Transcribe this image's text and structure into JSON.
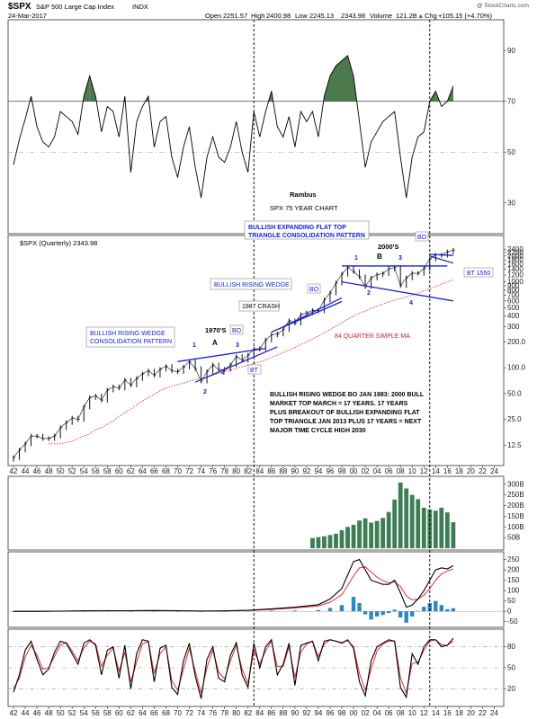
{
  "header": {
    "symbol": "$SPX",
    "name": "S&P 500 Large Cap Index",
    "exchange": "INDX",
    "watermark": "@ StockCharts.com",
    "date": "24-Mar-2017",
    "quote": {
      "open_label": "Open",
      "open": "2251.57",
      "high_label": "High",
      "high": "2400.98",
      "low_label": "Low",
      "low": "2245.13",
      "close": "2343.98",
      "volume_label": "Volume",
      "volume": "121.2B",
      "chg_label": "Chg",
      "chg": "+105.15 (+4.70%)",
      "chg_arrow": "▲"
    }
  },
  "colors": {
    "rsi_fill": "#4d7a4d",
    "price_bar": "#111111",
    "ma_line": "#e03030",
    "trendline": "#1a22cc",
    "volume_bar": "#3e7e57",
    "macd_hist": "#2f86c4",
    "macd_line": "#000000",
    "signal_line": "#e03030",
    "annotation_blue": "#1a22cc",
    "annotation_red": "#d02020"
  },
  "chart_data": [
    {
      "type": "line",
      "name": "rsi",
      "ylim": [
        20,
        100
      ],
      "ticks": [
        "90",
        "70",
        "50",
        "30"
      ],
      "levels": [
        70,
        50
      ],
      "fill_above": 70,
      "x": [
        1942,
        1943,
        1944,
        1945,
        1946,
        1947,
        1948,
        1949,
        1950,
        1951,
        1952,
        1953,
        1954,
        1955,
        1956,
        1957,
        1958,
        1959,
        1960,
        1961,
        1962,
        1963,
        1964,
        1965,
        1966,
        1967,
        1968,
        1969,
        1970,
        1971,
        1972,
        1973,
        1974,
        1975,
        1976,
        1977,
        1978,
        1979,
        1980,
        1981,
        1982,
        1983,
        1984,
        1985,
        1986,
        1987,
        1988,
        1989,
        1990,
        1991,
        1992,
        1993,
        1994,
        1995,
        1996,
        1997,
        1998,
        1999,
        2000,
        2001,
        2002,
        2003,
        2004,
        2005,
        2006,
        2007,
        2008,
        2009,
        2010,
        2011,
        2012,
        2013,
        2014,
        2015,
        2016,
        2017
      ],
      "values": [
        45,
        55,
        63,
        72,
        60,
        54,
        52,
        56,
        66,
        64,
        62,
        57,
        72,
        80,
        72,
        58,
        68,
        66,
        56,
        72,
        42,
        62,
        68,
        72,
        52,
        62,
        64,
        48,
        40,
        52,
        60,
        44,
        32,
        48,
        56,
        48,
        46,
        52,
        62,
        50,
        42,
        66,
        56,
        66,
        74,
        60,
        56,
        64,
        52,
        66,
        62,
        66,
        56,
        72,
        80,
        84,
        86,
        88,
        80,
        62,
        44,
        54,
        58,
        62,
        64,
        66,
        48,
        32,
        48,
        56,
        58,
        70,
        74,
        68,
        70,
        76
      ]
    },
    {
      "type": "line",
      "name": "$SPX (Quarterly) 2343.98",
      "legend": "$SPX (Quarterly) 2343.98",
      "log_scale": true,
      "ylim": [
        8,
        3000
      ],
      "ticks": [
        "2400",
        "2200",
        "2000",
        "1800",
        "1600",
        "1400",
        "1200",
        "1000",
        "900",
        "800",
        "700",
        "600",
        "500",
        "400",
        "300",
        "200.0",
        "100.0",
        "50.0",
        "25.0",
        "12.5"
      ],
      "x": [
        1942,
        1943,
        1944,
        1945,
        1946,
        1947,
        1948,
        1949,
        1950,
        1951,
        1952,
        1953,
        1954,
        1955,
        1956,
        1957,
        1958,
        1959,
        1960,
        1961,
        1962,
        1963,
        1964,
        1965,
        1966,
        1967,
        1968,
        1969,
        1970,
        1971,
        1972,
        1973,
        1974,
        1975,
        1976,
        1977,
        1978,
        1979,
        1980,
        1981,
        1982,
        1983,
        1984,
        1985,
        1986,
        1987,
        1988,
        1989,
        1990,
        1991,
        1992,
        1993,
        1994,
        1995,
        1996,
        1997,
        1998,
        1999,
        2000,
        2001,
        2002,
        2003,
        2004,
        2005,
        2006,
        2007,
        2008,
        2009,
        2010,
        2011,
        2012,
        2013,
        2014,
        2015,
        2016,
        2017
      ],
      "values": [
        9,
        11,
        13,
        16,
        16,
        15,
        15,
        16,
        20,
        23,
        26,
        25,
        35,
        45,
        47,
        42,
        55,
        60,
        58,
        72,
        63,
        75,
        85,
        92,
        82,
        96,
        104,
        92,
        90,
        102,
        118,
        98,
        70,
        90,
        108,
        95,
        96,
        108,
        135,
        122,
        140,
        165,
        167,
        210,
        242,
        247,
        278,
        353,
        330,
        417,
        436,
        466,
        459,
        616,
        741,
        970,
        1229,
        1469,
        1320,
        1148,
        880,
        1112,
        1212,
        1248,
        1418,
        1468,
        903,
        1115,
        1258,
        1258,
        1426,
        1848,
        2059,
        2044,
        2239,
        2344
      ],
      "ma_name": "84 QUARTER SIMPLE MA",
      "ma_values": [
        null,
        null,
        null,
        null,
        null,
        null,
        13,
        13,
        13,
        13.5,
        14,
        15,
        16,
        17,
        19,
        20,
        22,
        24,
        27,
        30,
        33,
        37,
        41,
        45,
        49,
        54,
        58,
        61,
        64,
        66,
        70,
        73,
        75,
        78,
        82,
        86,
        90,
        94,
        98,
        103,
        107,
        112,
        117,
        124,
        132,
        140,
        150,
        160,
        172,
        186,
        200,
        216,
        234,
        254,
        278,
        304,
        334,
        366,
        400,
        430,
        458,
        490,
        520,
        552,
        584,
        612,
        640,
        668,
        700,
        740,
        780,
        830,
        880,
        940,
        1000,
        1060
      ]
    },
    {
      "type": "bar",
      "name": "volume",
      "ylim": [
        0,
        320
      ],
      "ticks": [
        "300B",
        "250B",
        "200B",
        "150B",
        "100B",
        "50B"
      ],
      "x": [
        1993,
        1994,
        1995,
        1996,
        1997,
        1998,
        1999,
        2000,
        2001,
        2002,
        2003,
        2004,
        2005,
        2006,
        2007,
        2008,
        2009,
        2010,
        2011,
        2012,
        2013,
        2014,
        2015,
        2016,
        2017
      ],
      "values": [
        48,
        52,
        56,
        62,
        68,
        84,
        100,
        110,
        130,
        140,
        120,
        128,
        142,
        170,
        228,
        308,
        280,
        250,
        230,
        190,
        182,
        176,
        190,
        168,
        122
      ]
    },
    {
      "type": "line",
      "name": "macd",
      "ylim": [
        -60,
        270
      ],
      "ticks": [
        "250",
        "200",
        "150",
        "100",
        "50",
        "0",
        "-50"
      ],
      "x": [
        1942,
        1946,
        1950,
        1954,
        1958,
        1962,
        1966,
        1970,
        1974,
        1978,
        1982,
        1986,
        1990,
        1994,
        1996,
        1998,
        2000,
        2001,
        2002,
        2003,
        2004,
        2005,
        2006,
        2007,
        2008,
        2009,
        2010,
        2011,
        2012,
        2013,
        2014,
        2015,
        2016,
        2017
      ],
      "macd": [
        0,
        0,
        1,
        2,
        3,
        3,
        4,
        3,
        1,
        2,
        5,
        12,
        20,
        32,
        60,
        110,
        240,
        250,
        200,
        150,
        140,
        130,
        130,
        150,
        90,
        20,
        30,
        60,
        100,
        150,
        200,
        210,
        205,
        220
      ],
      "signal": [
        0,
        0,
        1,
        1.5,
        2.5,
        3,
        3.5,
        3,
        2,
        2,
        4,
        9,
        16,
        26,
        44,
        80,
        170,
        210,
        215,
        190,
        165,
        148,
        138,
        142,
        120,
        75,
        55,
        58,
        78,
        110,
        150,
        180,
        195,
        205
      ],
      "hist": [
        0,
        0,
        0,
        0.5,
        0.5,
        0,
        0.5,
        0,
        -1,
        0,
        1,
        3,
        4,
        6,
        16,
        30,
        70,
        40,
        -15,
        -40,
        -25,
        -18,
        -8,
        8,
        -30,
        -55,
        -25,
        2,
        22,
        40,
        50,
        30,
        10,
        15
      ]
    },
    {
      "type": "line",
      "name": "stochastic",
      "ylim": [
        0,
        100
      ],
      "ticks": [
        "80",
        "50",
        "20"
      ],
      "levels": [
        80,
        50,
        20
      ],
      "x": [
        1942,
        1943,
        1944,
        1945,
        1946,
        1947,
        1948,
        1949,
        1950,
        1951,
        1952,
        1953,
        1954,
        1955,
        1956,
        1957,
        1958,
        1959,
        1960,
        1961,
        1962,
        1963,
        1964,
        1965,
        1966,
        1967,
        1968,
        1969,
        1970,
        1971,
        1972,
        1973,
        1974,
        1975,
        1976,
        1977,
        1978,
        1979,
        1980,
        1981,
        1982,
        1983,
        1984,
        1985,
        1986,
        1987,
        1988,
        1989,
        1990,
        1991,
        1992,
        1993,
        1994,
        1995,
        1996,
        1997,
        1998,
        1999,
        2000,
        2001,
        2002,
        2003,
        2004,
        2005,
        2006,
        2007,
        2008,
        2009,
        2010,
        2011,
        2012,
        2013,
        2014,
        2015,
        2016,
        2017
      ],
      "k": [
        15,
        40,
        75,
        88,
        62,
        40,
        48,
        72,
        88,
        85,
        70,
        55,
        85,
        90,
        82,
        40,
        75,
        80,
        35,
        82,
        20,
        70,
        90,
        88,
        30,
        78,
        82,
        22,
        12,
        60,
        85,
        38,
        6,
        62,
        80,
        35,
        30,
        68,
        86,
        40,
        22,
        85,
        50,
        80,
        90,
        40,
        55,
        85,
        25,
        82,
        85,
        88,
        60,
        88,
        90,
        88,
        85,
        90,
        78,
        30,
        10,
        60,
        80,
        85,
        90,
        88,
        22,
        8,
        70,
        55,
        80,
        90,
        90,
        80,
        82,
        92
      ],
      "d": [
        20,
        35,
        65,
        82,
        68,
        48,
        50,
        66,
        82,
        86,
        74,
        60,
        78,
        88,
        84,
        52,
        68,
        78,
        45,
        72,
        30,
        58,
        84,
        88,
        42,
        70,
        80,
        32,
        18,
        48,
        78,
        45,
        14,
        50,
        75,
        44,
        34,
        60,
        82,
        48,
        28,
        74,
        56,
        74,
        88,
        52,
        52,
        80,
        36,
        72,
        84,
        88,
        66,
        84,
        90,
        88,
        86,
        89,
        80,
        42,
        18,
        48,
        74,
        84,
        88,
        88,
        36,
        14,
        56,
        58,
        75,
        88,
        90,
        83,
        82,
        88
      ]
    }
  ],
  "x_axis": {
    "ticks": [
      "42",
      "44",
      "46",
      "48",
      "50",
      "52",
      "54",
      "56",
      "58",
      "60",
      "62",
      "64",
      "66",
      "68",
      "70",
      "72",
      "74",
      "76",
      "78",
      "80",
      "82",
      "84",
      "86",
      "88",
      "90",
      "92",
      "94",
      "96",
      "98",
      "00",
      "02",
      "04",
      "06",
      "08",
      "10",
      "12",
      "14",
      "16",
      "18",
      "20",
      "22",
      "24"
    ]
  },
  "annotations": {
    "author": "Rambus",
    "subtitle": "SPX 75 YEAR CHART",
    "flat_top_title": "BULLISH EXPANDING FLAT TOP TRIANGLE CONSOLIDATION PATTERN",
    "flat_top_line1": "BULLISH EXPANDING FLAT TOP",
    "flat_top_line2": "TRIANGLE CONSOLIDATION PATTERN",
    "rising_wedge": "BULLISH RISING WEDGE",
    "consolidation_line1": "BULLISH RISING WEDGE",
    "consolidation_line2": "CONSOLIDATION PATTERN",
    "crash": "1987 CRASH",
    "seventies": "1970'S",
    "two_thousands": "2000'S",
    "bo": "BO",
    "bt": "BT",
    "bt1550": "BT 1550",
    "ma_label": "84 QUARTER SIMPLE MA",
    "letter_a": "A",
    "letter_b": "B",
    "n1": "1",
    "n2": "2",
    "n3": "3",
    "n4": "4",
    "note_lines": [
      "BULLISH RISING WEDGE BO JAN 1983:  2000 BULL",
      "MARKET TOP MARCH = 17 YEARS.  17 YEARS",
      "PLUS BREAKOUT OF BULLISH EXPANDING FLAT",
      "TOP TRIANGLE  JAN 2013 PLUS 17 YEARS = NEXT",
      "MAJOR TIME CYCLE HIGH 2030"
    ]
  }
}
